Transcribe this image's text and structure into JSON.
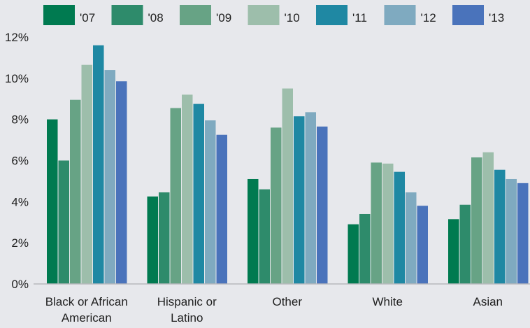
{
  "chart_data": {
    "type": "bar",
    "categories": [
      [
        "Black or African",
        "American"
      ],
      [
        "Hispanic or",
        "Latino"
      ],
      [
        "Other"
      ],
      [
        "White"
      ],
      [
        "Asian"
      ]
    ],
    "series": [
      {
        "name": "'07",
        "color": "#007a50",
        "values": [
          8.0,
          4.25,
          5.1,
          2.9,
          3.15
        ]
      },
      {
        "name": "'08",
        "color": "#2e8b6b",
        "values": [
          6.0,
          4.45,
          4.6,
          3.4,
          3.85
        ]
      },
      {
        "name": "'09",
        "color": "#67a385",
        "values": [
          8.95,
          8.55,
          7.6,
          5.9,
          6.15
        ]
      },
      {
        "name": "'10",
        "color": "#9dbeab",
        "values": [
          10.65,
          9.2,
          9.5,
          5.85,
          6.4
        ]
      },
      {
        "name": "'11",
        "color": "#1f88a3",
        "values": [
          11.6,
          8.75,
          8.15,
          5.45,
          5.55
        ]
      },
      {
        "name": "'12",
        "color": "#7faac0",
        "values": [
          10.4,
          7.95,
          8.35,
          4.45,
          5.1
        ]
      },
      {
        "name": "'13",
        "color": "#4a73bb",
        "values": [
          9.85,
          7.25,
          7.65,
          3.8,
          4.9
        ]
      }
    ],
    "yticks": [
      "0%",
      "2%",
      "4%",
      "6%",
      "8%",
      "10%",
      "12%"
    ],
    "ylim": [
      0,
      12
    ],
    "grid": false,
    "legend_position": "top",
    "title": "",
    "xlabel": "",
    "ylabel": ""
  }
}
